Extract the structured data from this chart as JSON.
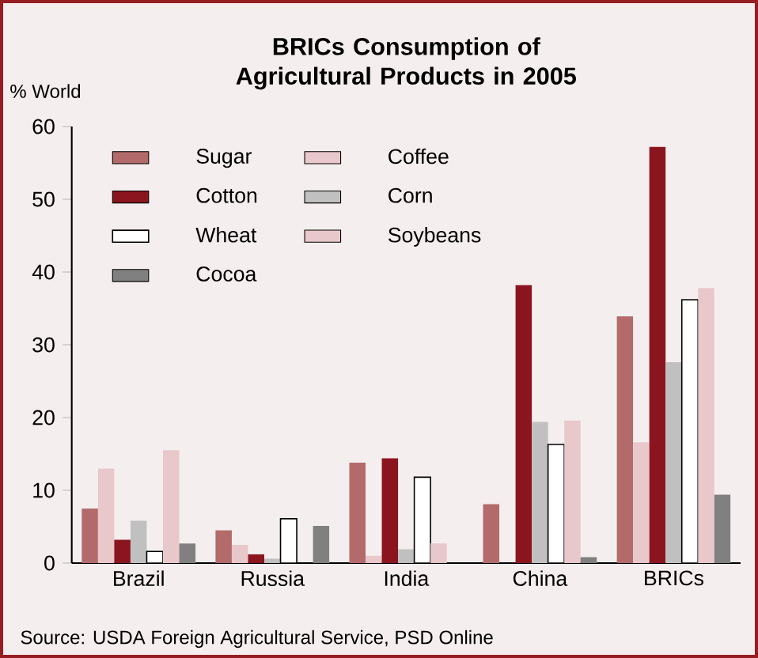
{
  "chart_data": {
    "type": "bar",
    "title": "BRICs Consumption of Agricultural Products in 2005",
    "ylabel": "% World",
    "categories": [
      "Brazil",
      "Russia",
      "India",
      "China",
      "BRICs"
    ],
    "series": [
      {
        "name": "Sugar",
        "color": "#b36a6a",
        "values": [
          7.5,
          4.5,
          13.8,
          8.1,
          33.9
        ]
      },
      {
        "name": "Coffee",
        "color": "#e8c8cb",
        "values": [
          13.0,
          2.5,
          1.0,
          0,
          16.6
        ]
      },
      {
        "name": "Cotton",
        "color": "#8b151e",
        "values": [
          3.2,
          1.2,
          14.4,
          38.2,
          57.2
        ]
      },
      {
        "name": "Corn",
        "color": "#c0c0c0",
        "values": [
          5.8,
          0.6,
          1.9,
          19.4,
          27.6
        ]
      },
      {
        "name": "Wheat",
        "color": "#ffffff",
        "values": [
          1.6,
          6.1,
          11.8,
          16.3,
          36.2
        ]
      },
      {
        "name": "Soybeans",
        "color": "#e8c8cb",
        "values": [
          15.5,
          0,
          2.7,
          19.6,
          37.8
        ]
      },
      {
        "name": "Cocoa",
        "color": "#808080",
        "values": [
          2.7,
          5.1,
          0,
          0.8,
          9.4
        ]
      }
    ],
    "ylim": [
      0,
      60
    ],
    "yticks": [
      0,
      10,
      20,
      30,
      40,
      50,
      60
    ],
    "legend": "top left",
    "annotations": [
      "Source: USDA Foreign Agricultural Service, PSD Online"
    ]
  }
}
